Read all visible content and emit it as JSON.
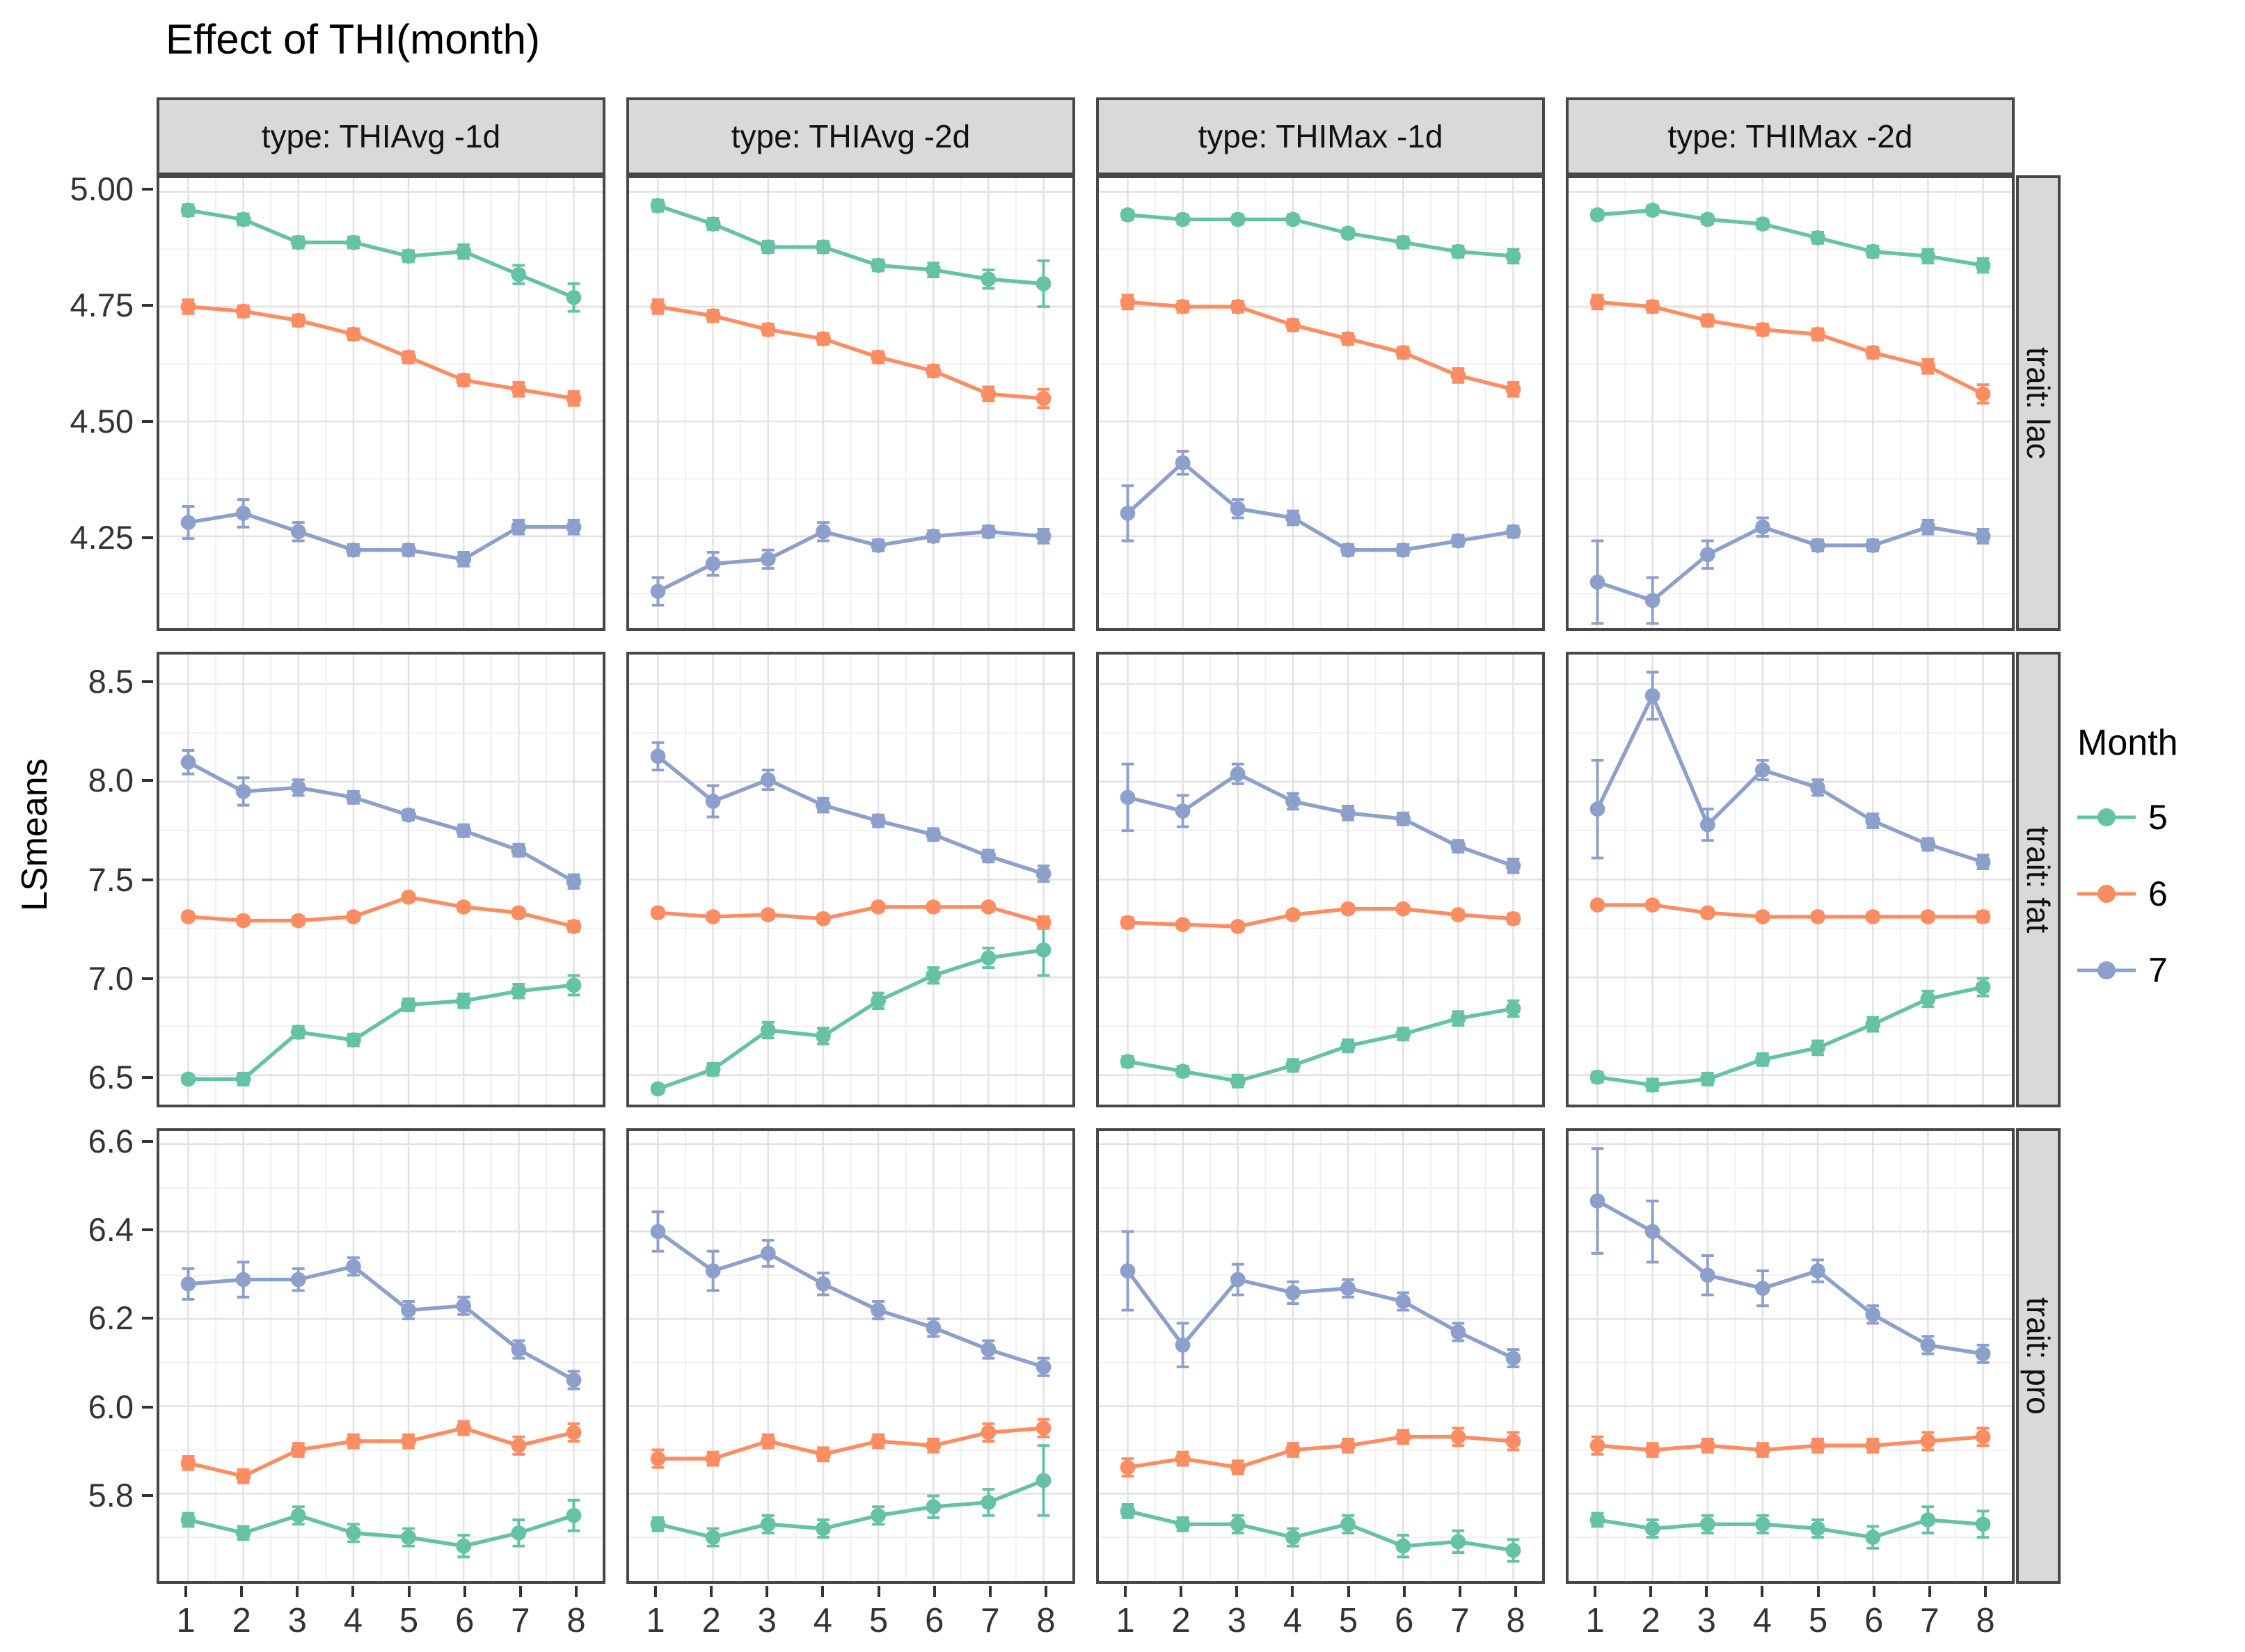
{
  "title": "Effect of THI(month)",
  "ylabel": "LSmeans",
  "legend": {
    "title": "Month",
    "items": [
      {
        "label": "5",
        "color": "#66C2A5"
      },
      {
        "label": "6",
        "color": "#FC8D62"
      },
      {
        "label": "7",
        "color": "#8DA0CB"
      }
    ],
    "position": "right"
  },
  "colors": {
    "strip_background": "#d9d9d9",
    "panel_border": "#474747",
    "grid_major": "#e2e2e2",
    "grid_minor": "#f0f0f0",
    "axis_text": "#333333"
  },
  "chart_data": {
    "type": "line",
    "title": "Effect of THI(month)",
    "xlabel": "",
    "ylabel": "LSmeans",
    "grid": true,
    "legend_position": "right",
    "x": [
      1,
      2,
      3,
      4,
      5,
      6,
      7,
      8
    ],
    "series_order": [
      "5",
      "6",
      "7"
    ],
    "facet_cols": [
      "type: THIAvg -1d",
      "type: THIAvg -2d",
      "type: THIMax -1d",
      "type: THIMax -2d"
    ],
    "facet_rows": [
      {
        "label": "trait: lac",
        "ylim": [
          4.05,
          5.03
        ],
        "yticks": [
          5.0,
          4.75,
          4.5,
          4.25
        ],
        "ytick_labels": [
          "5.00",
          "4.75",
          "4.50",
          "4.25"
        ]
      },
      {
        "label": "trait: fat",
        "ylim": [
          6.35,
          8.65
        ],
        "yticks": [
          8.5,
          8.0,
          7.5,
          7.0,
          6.5
        ],
        "ytick_labels": [
          "8.5",
          "8.0",
          "7.5",
          "7.0",
          "6.5"
        ]
      },
      {
        "label": "trait: pro",
        "ylim": [
          5.6,
          6.63
        ],
        "yticks": [
          6.6,
          6.4,
          6.2,
          6.0,
          5.8
        ],
        "ytick_labels": [
          "6.6",
          "6.4",
          "6.2",
          "6.0",
          "5.8"
        ]
      }
    ],
    "panels": [
      {
        "row": 0,
        "col": 0,
        "series": {
          "5": {
            "values": [
              4.96,
              4.94,
              4.89,
              4.89,
              4.86,
              4.87,
              4.82,
              4.77
            ],
            "err": [
              0.012,
              0.012,
              0.012,
              0.012,
              0.012,
              0.015,
              0.02,
              0.03
            ]
          },
          "6": {
            "values": [
              4.75,
              4.74,
              4.72,
              4.69,
              4.64,
              4.59,
              4.57,
              4.55
            ],
            "err": [
              0.015,
              0.012,
              0.012,
              0.012,
              0.012,
              0.012,
              0.015,
              0.015
            ]
          },
          "7": {
            "values": [
              4.28,
              4.3,
              4.26,
              4.22,
              4.22,
              4.2,
              4.27,
              4.27
            ],
            "err": [
              0.035,
              0.03,
              0.02,
              0.012,
              0.012,
              0.015,
              0.015,
              0.015
            ]
          }
        }
      },
      {
        "row": 0,
        "col": 1,
        "series": {
          "5": {
            "values": [
              4.97,
              4.93,
              4.88,
              4.88,
              4.84,
              4.83,
              4.81,
              4.8
            ],
            "err": [
              0.012,
              0.012,
              0.012,
              0.012,
              0.012,
              0.015,
              0.02,
              0.05
            ]
          },
          "6": {
            "values": [
              4.75,
              4.73,
              4.7,
              4.68,
              4.64,
              4.61,
              4.56,
              4.55
            ],
            "err": [
              0.015,
              0.012,
              0.012,
              0.012,
              0.012,
              0.012,
              0.015,
              0.02
            ]
          },
          "7": {
            "values": [
              4.13,
              4.19,
              4.2,
              4.26,
              4.23,
              4.25,
              4.26,
              4.25
            ],
            "err": [
              0.03,
              0.025,
              0.02,
              0.02,
              0.012,
              0.012,
              0.012,
              0.015
            ]
          }
        }
      },
      {
        "row": 0,
        "col": 2,
        "series": {
          "5": {
            "values": [
              4.95,
              4.94,
              4.94,
              4.94,
              4.91,
              4.89,
              4.87,
              4.86
            ],
            "err": [
              0.01,
              0.01,
              0.01,
              0.01,
              0.01,
              0.012,
              0.012,
              0.015
            ]
          },
          "6": {
            "values": [
              4.76,
              4.75,
              4.75,
              4.71,
              4.68,
              4.65,
              4.6,
              4.57
            ],
            "err": [
              0.015,
              0.012,
              0.012,
              0.012,
              0.012,
              0.012,
              0.015,
              0.015
            ]
          },
          "7": {
            "values": [
              4.3,
              4.41,
              4.31,
              4.29,
              4.22,
              4.22,
              4.24,
              4.26
            ],
            "err": [
              0.06,
              0.025,
              0.02,
              0.015,
              0.012,
              0.012,
              0.012,
              0.012
            ]
          }
        }
      },
      {
        "row": 0,
        "col": 3,
        "series": {
          "5": {
            "values": [
              4.95,
              4.96,
              4.94,
              4.93,
              4.9,
              4.87,
              4.86,
              4.84
            ],
            "err": [
              0.01,
              0.01,
              0.01,
              0.01,
              0.012,
              0.012,
              0.015,
              0.015
            ]
          },
          "6": {
            "values": [
              4.76,
              4.75,
              4.72,
              4.7,
              4.69,
              4.65,
              4.62,
              4.56
            ],
            "err": [
              0.015,
              0.012,
              0.012,
              0.012,
              0.012,
              0.012,
              0.015,
              0.02
            ]
          },
          "7": {
            "values": [
              4.15,
              4.11,
              4.21,
              4.27,
              4.23,
              4.23,
              4.27,
              4.25
            ],
            "err": [
              0.09,
              0.05,
              0.03,
              0.02,
              0.012,
              0.012,
              0.015,
              0.015
            ]
          }
        }
      },
      {
        "row": 1,
        "col": 0,
        "series": {
          "5": {
            "values": [
              6.48,
              6.48,
              6.72,
              6.68,
              6.86,
              6.88,
              6.93,
              6.96
            ],
            "err": [
              0.02,
              0.03,
              0.03,
              0.03,
              0.03,
              0.035,
              0.035,
              0.05
            ]
          },
          "6": {
            "values": [
              7.31,
              7.29,
              7.29,
              7.31,
              7.41,
              7.36,
              7.33,
              7.26
            ],
            "err": [
              0.02,
              0.02,
              0.02,
              0.02,
              0.02,
              0.02,
              0.02,
              0.025
            ]
          },
          "7": {
            "values": [
              8.1,
              7.95,
              7.97,
              7.92,
              7.83,
              7.75,
              7.65,
              7.49
            ],
            "err": [
              0.06,
              0.07,
              0.04,
              0.03,
              0.025,
              0.03,
              0.03,
              0.035
            ]
          }
        }
      },
      {
        "row": 1,
        "col": 1,
        "series": {
          "5": {
            "values": [
              6.43,
              6.53,
              6.73,
              6.7,
              6.88,
              7.01,
              7.1,
              7.14
            ],
            "err": [
              0.02,
              0.03,
              0.04,
              0.04,
              0.04,
              0.04,
              0.05,
              0.13
            ]
          },
          "6": {
            "values": [
              7.33,
              7.31,
              7.32,
              7.3,
              7.36,
              7.36,
              7.36,
              7.28
            ],
            "err": [
              0.02,
              0.02,
              0.02,
              0.02,
              0.02,
              0.02,
              0.02,
              0.03
            ]
          },
          "7": {
            "values": [
              8.13,
              7.9,
              8.01,
              7.88,
              7.8,
              7.73,
              7.62,
              7.53
            ],
            "err": [
              0.07,
              0.08,
              0.05,
              0.035,
              0.03,
              0.03,
              0.03,
              0.04
            ]
          }
        }
      },
      {
        "row": 1,
        "col": 2,
        "series": {
          "5": {
            "values": [
              6.57,
              6.52,
              6.47,
              6.55,
              6.65,
              6.71,
              6.79,
              6.84
            ],
            "err": [
              0.025,
              0.025,
              0.03,
              0.03,
              0.03,
              0.03,
              0.035,
              0.04
            ]
          },
          "6": {
            "values": [
              7.28,
              7.27,
              7.26,
              7.32,
              7.35,
              7.35,
              7.32,
              7.3
            ],
            "err": [
              0.025,
              0.02,
              0.02,
              0.02,
              0.02,
              0.02,
              0.02,
              0.025
            ]
          },
          "7": {
            "values": [
              7.92,
              7.85,
              8.04,
              7.9,
              7.84,
              7.81,
              7.67,
              7.57
            ],
            "err": [
              0.17,
              0.08,
              0.05,
              0.04,
              0.035,
              0.03,
              0.03,
              0.035
            ]
          }
        }
      },
      {
        "row": 1,
        "col": 3,
        "series": {
          "5": {
            "values": [
              6.49,
              6.45,
              6.48,
              6.58,
              6.64,
              6.76,
              6.89,
              6.95
            ],
            "err": [
              0.025,
              0.03,
              0.03,
              0.03,
              0.035,
              0.035,
              0.04,
              0.045
            ]
          },
          "6": {
            "values": [
              7.37,
              7.37,
              7.33,
              7.31,
              7.31,
              7.31,
              7.31,
              7.31
            ],
            "err": [
              0.02,
              0.02,
              0.02,
              0.02,
              0.02,
              0.02,
              0.02,
              0.025
            ]
          },
          "7": {
            "values": [
              7.86,
              8.44,
              7.78,
              8.06,
              7.97,
              7.8,
              7.68,
              7.59
            ],
            "err": [
              0.25,
              0.12,
              0.08,
              0.05,
              0.04,
              0.035,
              0.03,
              0.035
            ]
          }
        }
      },
      {
        "row": 2,
        "col": 0,
        "series": {
          "5": {
            "values": [
              5.74,
              5.71,
              5.75,
              5.71,
              5.7,
              5.68,
              5.71,
              5.75
            ],
            "err": [
              0.015,
              0.015,
              0.02,
              0.02,
              0.02,
              0.025,
              0.03,
              0.035
            ]
          },
          "6": {
            "values": [
              5.87,
              5.84,
              5.9,
              5.92,
              5.92,
              5.95,
              5.91,
              5.94
            ],
            "err": [
              0.015,
              0.015,
              0.015,
              0.015,
              0.015,
              0.015,
              0.02,
              0.02
            ]
          },
          "7": {
            "values": [
              6.28,
              6.29,
              6.29,
              6.32,
              6.22,
              6.23,
              6.13,
              6.06
            ],
            "err": [
              0.035,
              0.04,
              0.025,
              0.02,
              0.02,
              0.02,
              0.02,
              0.02
            ]
          }
        }
      },
      {
        "row": 2,
        "col": 1,
        "series": {
          "5": {
            "values": [
              5.73,
              5.7,
              5.73,
              5.72,
              5.75,
              5.77,
              5.78,
              5.83
            ],
            "err": [
              0.015,
              0.02,
              0.02,
              0.02,
              0.02,
              0.025,
              0.03,
              0.08
            ]
          },
          "6": {
            "values": [
              5.88,
              5.88,
              5.92,
              5.89,
              5.92,
              5.91,
              5.94,
              5.95
            ],
            "err": [
              0.02,
              0.015,
              0.015,
              0.015,
              0.015,
              0.015,
              0.02,
              0.02
            ]
          },
          "7": {
            "values": [
              6.4,
              6.31,
              6.35,
              6.28,
              6.22,
              6.18,
              6.13,
              6.09
            ],
            "err": [
              0.045,
              0.045,
              0.03,
              0.025,
              0.02,
              0.02,
              0.02,
              0.02
            ]
          }
        }
      },
      {
        "row": 2,
        "col": 2,
        "series": {
          "5": {
            "values": [
              5.76,
              5.73,
              5.73,
              5.7,
              5.73,
              5.68,
              5.69,
              5.67
            ],
            "err": [
              0.015,
              0.015,
              0.02,
              0.02,
              0.02,
              0.025,
              0.025,
              0.025
            ]
          },
          "6": {
            "values": [
              5.86,
              5.88,
              5.86,
              5.9,
              5.91,
              5.93,
              5.93,
              5.92
            ],
            "err": [
              0.02,
              0.015,
              0.015,
              0.015,
              0.015,
              0.015,
              0.02,
              0.02
            ]
          },
          "7": {
            "values": [
              6.31,
              6.14,
              6.29,
              6.26,
              6.27,
              6.24,
              6.17,
              6.11
            ],
            "err": [
              0.09,
              0.05,
              0.035,
              0.025,
              0.02,
              0.02,
              0.02,
              0.02
            ]
          }
        }
      },
      {
        "row": 2,
        "col": 3,
        "series": {
          "5": {
            "values": [
              5.74,
              5.72,
              5.73,
              5.73,
              5.72,
              5.7,
              5.74,
              5.73
            ],
            "err": [
              0.015,
              0.02,
              0.02,
              0.02,
              0.02,
              0.025,
              0.03,
              0.03
            ]
          },
          "6": {
            "values": [
              5.91,
              5.9,
              5.91,
              5.9,
              5.91,
              5.91,
              5.92,
              5.93
            ],
            "err": [
              0.02,
              0.015,
              0.015,
              0.015,
              0.015,
              0.015,
              0.02,
              0.02
            ]
          },
          "7": {
            "values": [
              6.47,
              6.4,
              6.3,
              6.27,
              6.31,
              6.21,
              6.14,
              6.12
            ],
            "err": [
              0.12,
              0.07,
              0.045,
              0.04,
              0.025,
              0.02,
              0.02,
              0.02
            ]
          }
        }
      }
    ]
  }
}
